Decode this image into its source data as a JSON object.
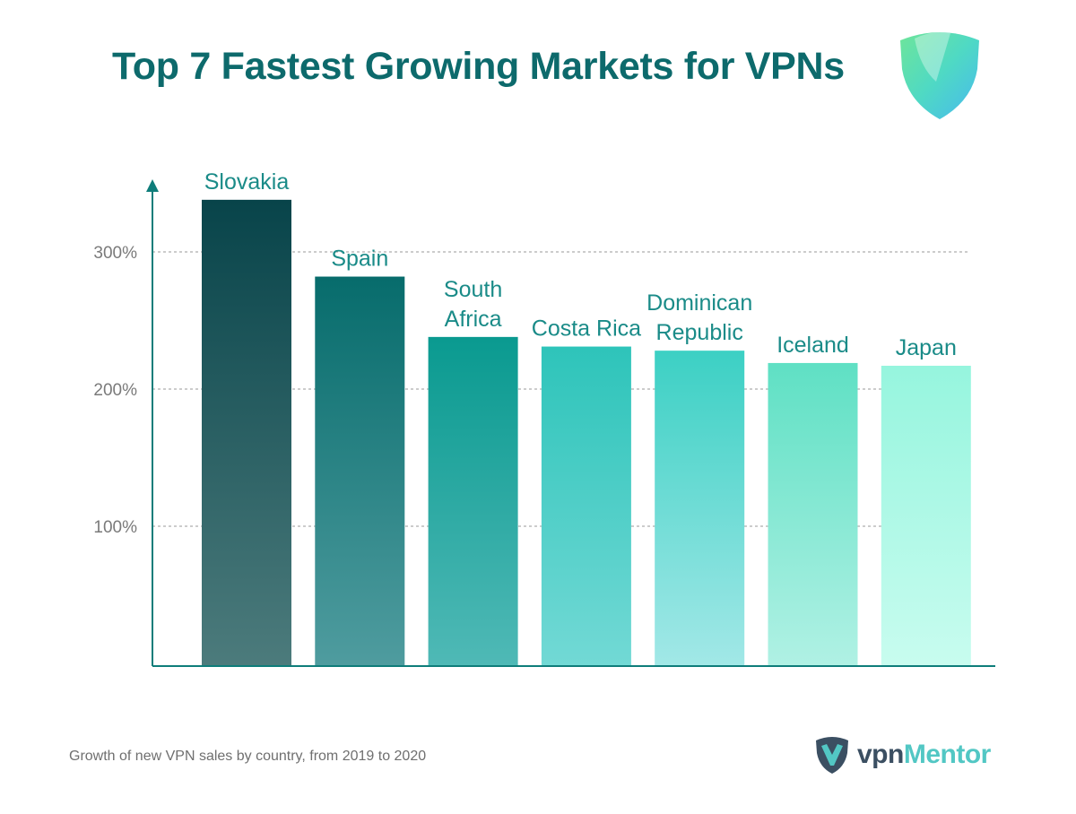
{
  "title": "Top 7 Fastest Growing Markets for VPNs",
  "footnote": "Growth of new VPN sales by country, from 2019 to 2020",
  "brand": {
    "part1": "vpn",
    "part2": "Mentor"
  },
  "colors": {
    "title": "#0d6a6c",
    "label": "#1a8b88",
    "axis": "#0e7d7a",
    "grid": "#9a9a9a",
    "tick": "#7a7a7a"
  },
  "chart_data": {
    "type": "bar",
    "title": "Top 7 Fastest Growing Markets for VPNs",
    "xlabel": "",
    "ylabel": "",
    "categories": [
      "Slovakia",
      "Spain",
      "South Africa",
      "Costa Rica",
      "Dominican Republic",
      "Iceland",
      "Japan"
    ],
    "label_lines": [
      [
        "Slovakia"
      ],
      [
        "Spain"
      ],
      [
        "South",
        "Africa"
      ],
      [
        "Costa Rica"
      ],
      [
        "Dominican",
        "Republic"
      ],
      [
        "Iceland"
      ],
      [
        "Japan"
      ]
    ],
    "values": [
      338,
      282,
      238,
      231,
      228,
      219,
      217
    ],
    "yticks": [
      100,
      200,
      300
    ],
    "ytick_labels": [
      "100%",
      "200%",
      "300%"
    ],
    "ylim": [
      0,
      340
    ],
    "grid": true,
    "legend": "none",
    "bar_gradients": [
      [
        "#08444a",
        "#4c7b7c"
      ],
      [
        "#076c6c",
        "#4f9c9f"
      ],
      [
        "#0a9a90",
        "#4fb9b6"
      ],
      [
        "#2ec4ba",
        "#72d9d5"
      ],
      [
        "#3cd0c4",
        "#a2e8e7"
      ],
      [
        "#5fe0c4",
        "#b0f1e4"
      ],
      [
        "#96f5de",
        "#c8fcef"
      ]
    ]
  }
}
